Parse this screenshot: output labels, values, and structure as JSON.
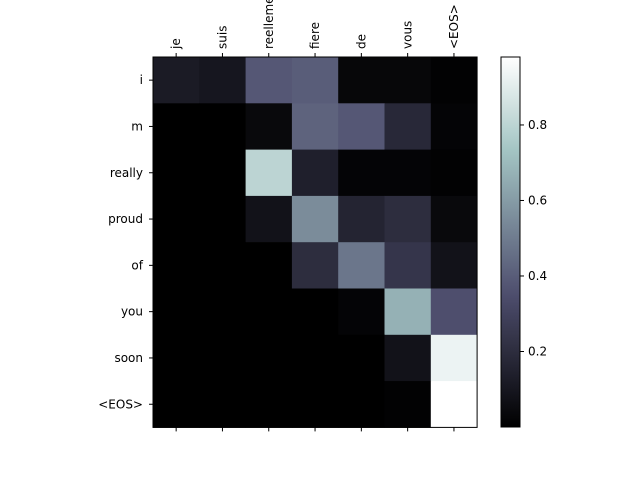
{
  "chart_data": {
    "type": "heatmap",
    "title": "",
    "xlabel": "",
    "ylabel": "",
    "x_labels": [
      "je",
      "suis",
      "reellement",
      "fiere",
      "de",
      "vous",
      "<EOS>"
    ],
    "y_labels": [
      "i",
      "m",
      "really",
      "proud",
      "of",
      "you",
      "soon",
      "<EOS>"
    ],
    "values": [
      [
        0.12,
        0.1,
        0.38,
        0.4,
        0.03,
        0.03,
        0.01
      ],
      [
        0.0,
        0.0,
        0.04,
        0.42,
        0.38,
        0.18,
        0.02
      ],
      [
        0.0,
        0.0,
        0.8,
        0.14,
        0.02,
        0.02,
        0.01
      ],
      [
        0.0,
        0.0,
        0.08,
        0.55,
        0.16,
        0.2,
        0.04
      ],
      [
        0.0,
        0.0,
        0.0,
        0.2,
        0.48,
        0.24,
        0.08
      ],
      [
        0.0,
        0.0,
        0.0,
        0.0,
        0.02,
        0.67,
        0.35
      ],
      [
        0.0,
        0.0,
        0.0,
        0.0,
        0.0,
        0.08,
        0.93
      ],
      [
        0.0,
        0.0,
        0.0,
        0.0,
        0.0,
        0.01,
        1.0
      ]
    ],
    "colormap": "bone",
    "colorbar": {
      "range": [
        0.0,
        0.98
      ],
      "ticks": [
        0.2,
        0.4,
        0.6,
        0.8
      ],
      "tick_labels": [
        "0.2",
        "0.4",
        "0.6",
        "0.8"
      ]
    },
    "grid": false,
    "x_ticks_position": "top"
  }
}
